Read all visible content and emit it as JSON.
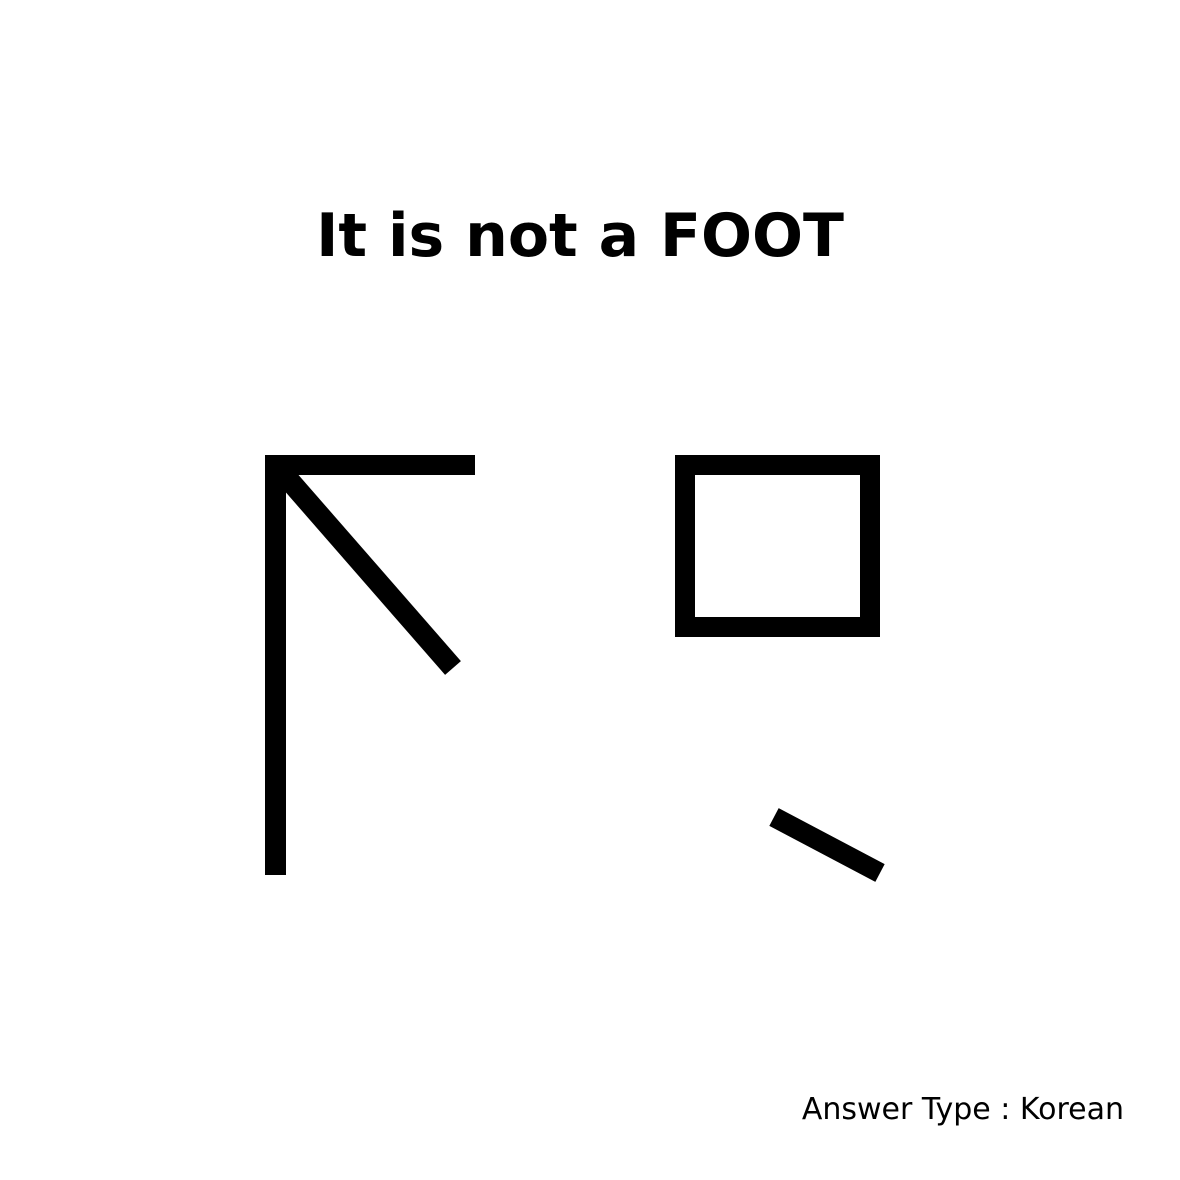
{
  "title": "It is not a FOOT",
  "answer_type": "Answer Type : Korean",
  "colors": {
    "background": "#ffffff",
    "ink": "#000000"
  },
  "puzzle": {
    "description_strokes": [
      "left-vertical",
      "top-bar",
      "diagonal",
      "box",
      "short-slash"
    ]
  }
}
